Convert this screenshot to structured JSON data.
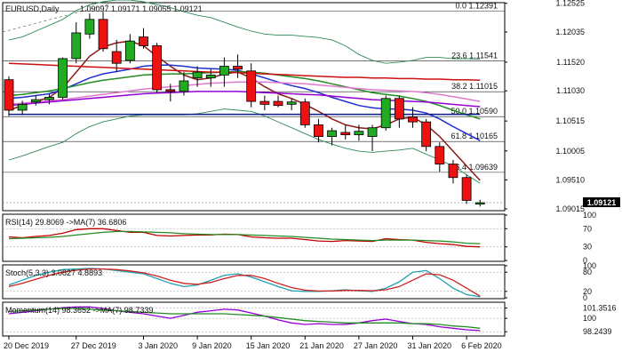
{
  "header": {
    "symbol_label": "EURUSD,Daily",
    "ohlc_values": "1.09097 1.09171 1.09055 1.09121"
  },
  "chart_data": [
    {
      "type": "candlestick",
      "instrument": "EURUSD",
      "timeframe": "Daily",
      "ylim": [
        1.09,
        1.1252
      ],
      "price_ticks": [
        "1.12525",
        "1.12035",
        "1.11520",
        "1.11030",
        "1.10515",
        "1.10005",
        "1.09510",
        "1.09015"
      ],
      "price_tick_values": [
        1.12525,
        1.12035,
        1.1152,
        1.1103,
        1.10515,
        1.10005,
        1.0951,
        1.09015
      ],
      "last_price_label": "1.09121",
      "last_price": 1.09121,
      "x_tick_labels": [
        "20 Dec 2019",
        "27 Dec 2019",
        "3 Jan 2020",
        "9 Jan 2020",
        "15 Jan 2020",
        "21 Jan 2020",
        "27 Jan 2020",
        "31 Jan 2020",
        "6 Feb 2020"
      ],
      "x_tick_index": [
        0,
        5,
        10,
        14,
        18,
        22,
        26,
        30,
        34
      ],
      "candles": [
        {
          "o": 1.1122,
          "h": 1.1128,
          "l": 1.106,
          "c": 1.107
        },
        {
          "o": 1.107,
          "h": 1.1086,
          "l": 1.1062,
          "c": 1.108
        },
        {
          "o": 1.1084,
          "h": 1.1095,
          "l": 1.1078,
          "c": 1.1088
        },
        {
          "o": 1.1088,
          "h": 1.1098,
          "l": 1.108,
          "c": 1.1092
        },
        {
          "o": 1.1092,
          "h": 1.116,
          "l": 1.1088,
          "c": 1.1158
        },
        {
          "o": 1.1158,
          "h": 1.122,
          "l": 1.115,
          "c": 1.1202
        },
        {
          "o": 1.12,
          "h": 1.1235,
          "l": 1.1192,
          "c": 1.1225
        },
        {
          "o": 1.1225,
          "h": 1.1238,
          "l": 1.117,
          "c": 1.1175
        },
        {
          "o": 1.117,
          "h": 1.119,
          "l": 1.1135,
          "c": 1.115
        },
        {
          "o": 1.1155,
          "h": 1.12,
          "l": 1.115,
          "c": 1.1188
        },
        {
          "o": 1.1195,
          "h": 1.121,
          "l": 1.1175,
          "c": 1.118
        },
        {
          "o": 1.118,
          "h": 1.1185,
          "l": 1.11,
          "c": 1.1105
        },
        {
          "o": 1.1105,
          "h": 1.1115,
          "l": 1.1085,
          "c": 1.1102
        },
        {
          "o": 1.1102,
          "h": 1.1135,
          "l": 1.1095,
          "c": 1.112
        },
        {
          "o": 1.1125,
          "h": 1.1145,
          "l": 1.111,
          "c": 1.1135
        },
        {
          "o": 1.1125,
          "h": 1.114,
          "l": 1.111,
          "c": 1.113
        },
        {
          "o": 1.113,
          "h": 1.116,
          "l": 1.111,
          "c": 1.1145
        },
        {
          "o": 1.1145,
          "h": 1.1165,
          "l": 1.1125,
          "c": 1.114
        },
        {
          "o": 1.1137,
          "h": 1.115,
          "l": 1.1075,
          "c": 1.1085
        },
        {
          "o": 1.1085,
          "h": 1.1095,
          "l": 1.107,
          "c": 1.108
        },
        {
          "o": 1.1085,
          "h": 1.1095,
          "l": 1.1075,
          "c": 1.1078
        },
        {
          "o": 1.108,
          "h": 1.109,
          "l": 1.107,
          "c": 1.1084
        },
        {
          "o": 1.1084,
          "h": 1.109,
          "l": 1.104,
          "c": 1.1045
        },
        {
          "o": 1.1045,
          "h": 1.1055,
          "l": 1.1015,
          "c": 1.1025
        },
        {
          "o": 1.1025,
          "h": 1.104,
          "l": 1.101,
          "c": 1.1035
        },
        {
          "o": 1.1032,
          "h": 1.1045,
          "l": 1.102,
          "c": 1.1028
        },
        {
          "o": 1.1028,
          "h": 1.1045,
          "l": 1.1018,
          "c": 1.1034
        },
        {
          "o": 1.1025,
          "h": 1.1045,
          "l": 1.1,
          "c": 1.104
        },
        {
          "o": 1.104,
          "h": 1.1095,
          "l": 1.1035,
          "c": 1.109
        },
        {
          "o": 1.109,
          "h": 1.1095,
          "l": 1.104,
          "c": 1.1055
        },
        {
          "o": 1.1058,
          "h": 1.1075,
          "l": 1.104,
          "c": 1.105
        },
        {
          "o": 1.105,
          "h": 1.1055,
          "l": 1.1,
          "c": 1.1008
        },
        {
          "o": 1.1008,
          "h": 1.1015,
          "l": 1.0965,
          "c": 1.0978
        },
        {
          "o": 1.0978,
          "h": 1.0985,
          "l": 1.0945,
          "c": 1.0955
        },
        {
          "o": 1.0955,
          "h": 1.096,
          "l": 1.091,
          "c": 1.0916
        },
        {
          "o": 1.09097,
          "h": 1.09171,
          "l": 1.09055,
          "c": 1.09121
        }
      ],
      "moving_averages": [
        {
          "color": "#8b1a1a",
          "values": [
            1.107,
            1.1078,
            1.1085,
            1.1092,
            1.1108,
            1.1135,
            1.1162,
            1.1178,
            1.1185,
            1.1188,
            1.118,
            1.1162,
            1.1145,
            1.113,
            1.1122,
            1.1125,
            1.1132,
            1.1135,
            1.1125,
            1.111,
            1.1098,
            1.109,
            1.108,
            1.1068,
            1.1055,
            1.1045,
            1.104,
            1.1038,
            1.1045,
            1.1055,
            1.1058,
            1.1045,
            1.1025,
            1.1,
            1.0975,
            1.095
          ]
        },
        {
          "color": "#1f2fd0",
          "values": [
            1.109,
            1.1092,
            1.1095,
            1.1098,
            1.1105,
            1.1115,
            1.1125,
            1.1132,
            1.1136,
            1.114,
            1.1145,
            1.1147,
            1.1147,
            1.1145,
            1.1142,
            1.1141,
            1.114,
            1.1138,
            1.1132,
            1.1125,
            1.1118,
            1.1112,
            1.1107,
            1.11,
            1.1092,
            1.1085,
            1.1078,
            1.1074,
            1.1072,
            1.1072,
            1.107,
            1.1065,
            1.1055,
            1.1042,
            1.103,
            1.1018
          ]
        },
        {
          "color": "#228b22",
          "values": [
            1.1095,
            1.1097,
            1.11,
            1.1103,
            1.1107,
            1.1112,
            1.1117,
            1.1121,
            1.1124,
            1.1127,
            1.113,
            1.1131,
            1.1132,
            1.1132,
            1.1133,
            1.1134,
            1.1135,
            1.1136,
            1.1135,
            1.1133,
            1.113,
            1.1127,
            1.1124,
            1.112,
            1.1115,
            1.111,
            1.1105,
            1.11,
            1.1097,
            1.1094,
            1.109,
            1.1085,
            1.1078,
            1.107,
            1.1062,
            1.1055
          ]
        },
        {
          "color": "#cc1010",
          "values": [
            1.115,
            1.1149,
            1.1148,
            1.1147,
            1.1146,
            1.1145,
            1.1144,
            1.1143,
            1.1142,
            1.1141,
            1.114,
            1.1139,
            1.1138,
            1.1137,
            1.1136,
            1.1135,
            1.1135,
            1.1134,
            1.1133,
            1.1132,
            1.1131,
            1.113,
            1.1129,
            1.1128,
            1.1127,
            1.1126,
            1.1126,
            1.1125,
            1.1125,
            1.1124,
            1.1124,
            1.1123,
            1.1123,
            1.1122,
            1.1122,
            1.1121
          ]
        },
        {
          "color": "#e07ad0",
          "values": [
            1.108,
            1.1082,
            1.1084,
            1.1086,
            1.1088,
            1.1091,
            1.1094,
            1.1097,
            1.11,
            1.1103,
            1.1106,
            1.1108,
            1.111,
            1.1112,
            1.1114,
            1.1116,
            1.1117,
            1.1118,
            1.1118,
            1.1118,
            1.1117,
            1.1116,
            1.1115,
            1.1113,
            1.1111,
            1.1109,
            1.1107,
            1.1105,
            1.1104,
            1.1103,
            1.1102,
            1.11,
            1.1097,
            1.1093,
            1.1089,
            1.1085
          ]
        },
        {
          "color": "#9400d3",
          "values": [
            1.1078,
            1.108,
            1.1082,
            1.1084,
            1.1086,
            1.1088,
            1.109,
            1.1092,
            1.1094,
            1.1096,
            1.1098,
            1.1099,
            1.11,
            1.1101,
            1.1102,
            1.1102,
            1.1102,
            1.1102,
            1.1101,
            1.11,
            1.1099,
            1.1098,
            1.1097,
            1.1096,
            1.1094,
            1.1092,
            1.109,
            1.1088,
            1.1087,
            1.1086,
            1.1085,
            1.1084,
            1.1082,
            1.108,
            1.1078,
            1.1076
          ]
        },
        {
          "color": "#0a1a8a",
          "values": [
            1.1063,
            1.1063,
            1.1063,
            1.1063,
            1.1063,
            1.1063,
            1.1063,
            1.1063,
            1.1063,
            1.1063,
            1.1063,
            1.1063,
            1.1063,
            1.1063,
            1.1063,
            1.1063,
            1.1063,
            1.1063,
            1.1063,
            1.1063,
            1.1063,
            1.1063,
            1.1063,
            1.1063,
            1.1063,
            1.1063,
            1.1063,
            1.1063,
            1.1063,
            1.1063,
            1.1063,
            1.1063,
            1.1063,
            1.1063,
            1.1063,
            1.1063
          ]
        }
      ],
      "bollinger_upper": {
        "color": "#2e8b57",
        "values": [
          1.119,
          1.1195,
          1.1205,
          1.1215,
          1.1225,
          1.124,
          1.125,
          1.1255,
          1.1258,
          1.1258,
          1.1255,
          1.125,
          1.1245,
          1.1238,
          1.1232,
          1.1228,
          1.122,
          1.1212,
          1.1205,
          1.12,
          1.1198,
          1.1198,
          1.1196,
          1.1194,
          1.119,
          1.118,
          1.1165,
          1.1155,
          1.115,
          1.1152,
          1.1155,
          1.116,
          1.116,
          1.1158,
          1.1158,
          1.1157
        ]
      },
      "bollinger_lower": {
        "color": "#2e8b57",
        "values": [
          1.0985,
          1.0992,
          1.1,
          1.1008,
          1.1015,
          1.103,
          1.1042,
          1.105,
          1.1055,
          1.106,
          1.1062,
          1.1062,
          1.1062,
          1.1062,
          1.1064,
          1.1068,
          1.1072,
          1.107,
          1.1068,
          1.106,
          1.105,
          1.104,
          1.103,
          1.102,
          1.1012,
          1.1005,
          1.1,
          1.0998,
          1.1,
          1.1002,
          1.1005,
          1.0995,
          1.0985,
          1.0975,
          1.096,
          1.0945
        ]
      },
      "fibonacci_levels": [
        {
          "label": "0.0 1.12391",
          "price": 1.12391
        },
        {
          "label": "23.6 1.11541",
          "price": 1.11541
        },
        {
          "label": "38.2 1.11015",
          "price": 1.11015
        },
        {
          "label": "50.0 1.10590",
          "price": 1.1059
        },
        {
          "label": "61.8 1.10165",
          "price": 1.10165
        },
        {
          "label": "76.4 1.09639",
          "price": 1.09639
        }
      ]
    },
    {
      "type": "line",
      "indicator_label": "RSI(14) 29.8069   ->MA(7) 36.6806",
      "ylim": [
        0,
        100
      ],
      "tick_labels": [
        "100",
        "70",
        "30",
        "0"
      ],
      "tick_values": [
        100,
        70,
        30,
        0
      ],
      "series": [
        {
          "color": "#c00000",
          "values": [
            52,
            50,
            53,
            55,
            60,
            68,
            70,
            70,
            66,
            62,
            62,
            55,
            54,
            55,
            56,
            56,
            58,
            57,
            52,
            50,
            49,
            49,
            46,
            43,
            42,
            44,
            43,
            42,
            48,
            46,
            45,
            40,
            37,
            35,
            31,
            30
          ]
        },
        {
          "color": "#228b22",
          "values": [
            48,
            49,
            50,
            51,
            53,
            56,
            59,
            62,
            64,
            64,
            63,
            62,
            61,
            59,
            58,
            57,
            57,
            57,
            56,
            55,
            54,
            53,
            51,
            49,
            47,
            46,
            45,
            44,
            45,
            45,
            45,
            44,
            43,
            41,
            38,
            37
          ]
        }
      ]
    },
    {
      "type": "line",
      "indicator_label": "Stoch(5,3,3) 3.0827  4.8893",
      "ylim": [
        0,
        100
      ],
      "tick_labels": [
        "100",
        "80",
        "20",
        "0"
      ],
      "tick_values": [
        100,
        80,
        20,
        0
      ],
      "series": [
        {
          "color": "#20a0b0",
          "values": [
            40,
            55,
            70,
            80,
            88,
            90,
            92,
            90,
            85,
            80,
            75,
            60,
            45,
            35,
            40,
            55,
            70,
            75,
            65,
            50,
            35,
            22,
            20,
            20,
            22,
            25,
            22,
            20,
            30,
            50,
            80,
            85,
            60,
            30,
            10,
            3
          ]
        },
        {
          "color": "#d02020",
          "values": [
            35,
            45,
            58,
            70,
            80,
            86,
            90,
            90,
            88,
            84,
            78,
            68,
            55,
            45,
            42,
            48,
            60,
            70,
            70,
            60,
            45,
            32,
            24,
            21,
            21,
            23,
            23,
            22,
            25,
            35,
            55,
            75,
            72,
            55,
            30,
            5
          ]
        }
      ]
    },
    {
      "type": "line",
      "indicator_label": "Momentum(14) 98.3652   ->MA(7) 98.7339",
      "ylim": [
        97.8,
        102.0
      ],
      "tick_labels": [
        "101.3516",
        "100",
        "98.2439"
      ],
      "tick_values": [
        101.3516,
        100,
        98.2439
      ],
      "series": [
        {
          "color": "#9400d3",
          "values": [
            100.6,
            100.8,
            101.0,
            101.2,
            101.4,
            101.5,
            101.5,
            101.3,
            101.0,
            100.8,
            100.6,
            100.3,
            100.0,
            100.4,
            100.8,
            101.0,
            101.2,
            101.1,
            100.7,
            100.3,
            99.8,
            99.4,
            99.2,
            99.3,
            99.2,
            99.2,
            99.4,
            99.7,
            99.9,
            99.6,
            99.3,
            99.2,
            98.9,
            98.7,
            98.5,
            98.4
          ]
        },
        {
          "color": "#228b22",
          "values": [
            100.9,
            101.0,
            101.1,
            101.2,
            101.3,
            101.3,
            101.2,
            101.1,
            101.0,
            100.9,
            100.8,
            100.7,
            100.6,
            100.6,
            100.6,
            100.6,
            100.6,
            100.5,
            100.4,
            100.3,
            100.1,
            99.9,
            99.7,
            99.6,
            99.5,
            99.4,
            99.4,
            99.4,
            99.4,
            99.4,
            99.3,
            99.3,
            99.2,
            99.0,
            98.9,
            98.7
          ]
        }
      ]
    }
  ]
}
